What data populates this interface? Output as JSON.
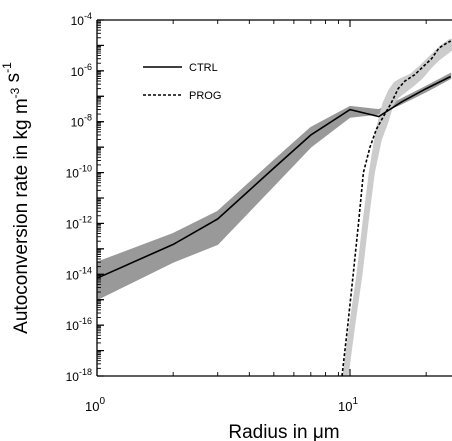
{
  "chart_data": {
    "type": "line",
    "xlabel": "Radius in μm",
    "ylabel": "Autoconversion rate in kg m^-3 s^-1",
    "xscale": "log",
    "yscale": "log",
    "xlim": [
      1,
      25
    ],
    "ylim": [
      1e-18,
      0.0001
    ],
    "x_ticks": [
      {
        "value": 1,
        "base": "10",
        "exp": "0"
      },
      {
        "value": 10,
        "base": "10",
        "exp": "1"
      }
    ],
    "y_ticks": [
      {
        "value": 0.0001,
        "base": "10",
        "exp": "-4"
      },
      {
        "value": 1e-06,
        "base": "10",
        "exp": "-6"
      },
      {
        "value": 1e-08,
        "base": "10",
        "exp": "-8"
      },
      {
        "value": 1e-10,
        "base": "10",
        "exp": "-10"
      },
      {
        "value": 1e-12,
        "base": "10",
        "exp": "-12"
      },
      {
        "value": 1e-14,
        "base": "10",
        "exp": "-14"
      },
      {
        "value": 1e-16,
        "base": "10",
        "exp": "-16"
      },
      {
        "value": 1e-18,
        "base": "10",
        "exp": "-18"
      }
    ],
    "legend_position": "top-left",
    "grid": false,
    "series": [
      {
        "name": "CTRL",
        "style": "solid",
        "color": "#000000",
        "x": [
          1,
          2,
          3,
          5,
          7,
          10,
          13,
          16,
          20,
          25
        ],
        "y": [
          7e-15,
          1.5e-13,
          1.5e-12,
          1.5e-10,
          3e-09,
          3e-08,
          1.6e-08,
          6e-08,
          2e-07,
          6e-07
        ],
        "band": {
          "color": "#999999",
          "x": [
            1,
            2,
            3,
            5,
            7,
            10,
            13,
            16,
            20,
            25
          ],
          "lower": [
            1e-15,
            3e-14,
            1.5e-13,
            3e-11,
            1e-09,
            1.5e-08,
            2e-08,
            5e-08,
            1.5e-07,
            5e-07
          ],
          "upper": [
            3e-14,
            4e-13,
            3e-12,
            3e-10,
            6e-09,
            4e-08,
            3e-08,
            8e-08,
            2.5e-07,
            8e-07
          ]
        }
      },
      {
        "name": "PROG",
        "style": "dashed",
        "color": "#000000",
        "x": [
          9.3,
          9.8,
          10.3,
          10.8,
          11.3,
          12,
          12.7,
          13.5,
          14.5,
          15.5,
          16.5,
          18,
          19.5,
          21,
          22.5,
          24,
          25
        ],
        "y": [
          1e-18,
          1e-16,
          1e-14,
          1e-12,
          1e-10,
          1e-09,
          5e-09,
          1.5e-08,
          5e-08,
          2e-07,
          4e-07,
          7e-07,
          1.5e-06,
          3e-06,
          8e-06,
          1.2e-05,
          1.5e-05
        ],
        "band": {
          "color": "#cccccc",
          "x": [
            9.6,
            10.2,
            10.9,
            11.5,
            12.2,
            13,
            13.8,
            14.5,
            15.2,
            16,
            17.5,
            19,
            20.5,
            22,
            23.5,
            25
          ],
          "lower": [
            1e-18,
            1e-16,
            1e-14,
            1e-12,
            1e-10,
            2e-09,
            1e-08,
            5e-08,
            1e-07,
            1.5e-07,
            3e-07,
            6e-07,
            1.5e-06,
            3e-06,
            5e-06,
            8e-06
          ],
          "upper": [
            1e-18,
            1e-16,
            1e-14,
            1e-12,
            1e-10,
            5e-09,
            5e-08,
            1.5e-07,
            3e-07,
            4e-07,
            6e-07,
            1.2e-06,
            2.5e-06,
            5e-06,
            9e-06,
            1.4e-05
          ]
        }
      }
    ]
  }
}
